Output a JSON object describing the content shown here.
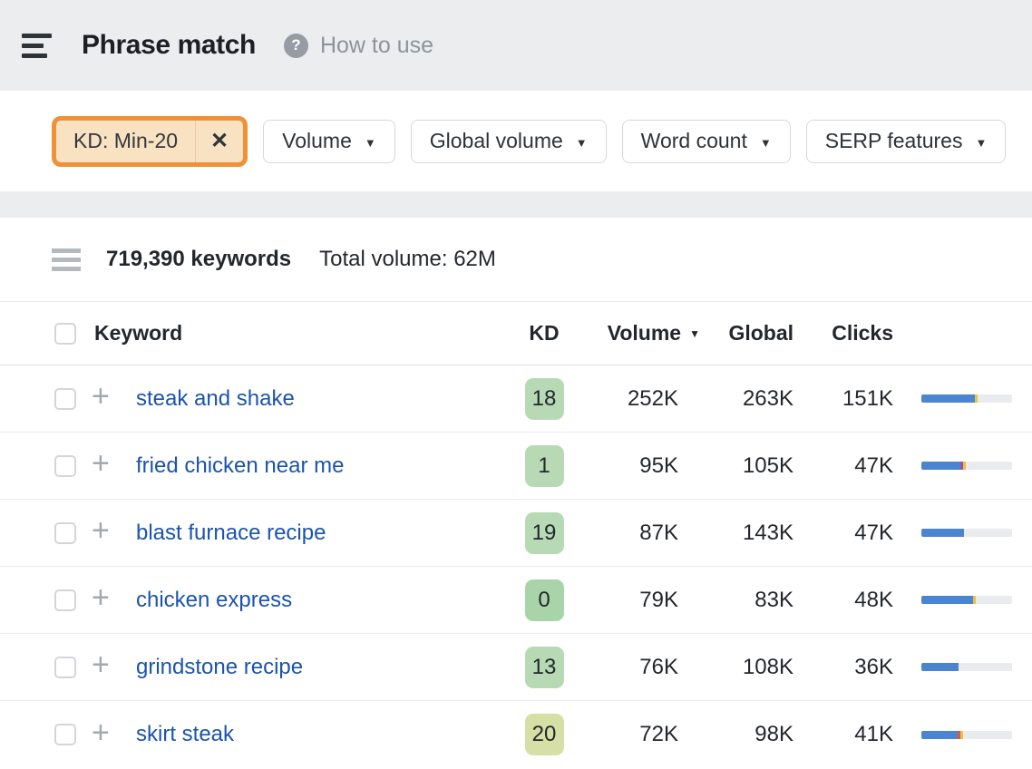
{
  "header": {
    "title": "Phrase match",
    "help_label": "How to use",
    "help_icon": "?"
  },
  "filters": {
    "chip": {
      "label": "KD: Min-20",
      "close_icon": "✕"
    },
    "caret_icon": "▼",
    "buttons": [
      {
        "label": "Volume"
      },
      {
        "label": "Global volume"
      },
      {
        "label": "Word count"
      },
      {
        "label": "SERP features"
      }
    ]
  },
  "stats": {
    "keywords_count": "719,390 keywords",
    "total_volume": "Total volume: 62M"
  },
  "table": {
    "headers": {
      "keyword": "Keyword",
      "kd": "KD",
      "volume": "Volume",
      "global": "Global",
      "clicks": "Clicks",
      "sort_caret": "▼"
    },
    "colors": {
      "bar_blue": "#4b85d1",
      "bar_yellow": "#edc23e",
      "bar_purple": "#9d52a0",
      "bar_red": "#d9584a",
      "bar_track": "#e9ebee",
      "kd_green": "#b7dab4",
      "kd_green_dark": "#a9d4a9",
      "kd_yellow_green": "#d6dfa6",
      "chip_orange": "#ef9138",
      "link_blue": "#1b54ad"
    },
    "rows": [
      {
        "keyword": "steak and shake",
        "kd": "18",
        "kd_color": "#b7dab4",
        "volume": "252K",
        "global": "263K",
        "clicks": "151K",
        "bar": [
          {
            "color": "#4b85d1",
            "pct": 59
          },
          {
            "color": "#edc23e",
            "pct": 3
          }
        ]
      },
      {
        "keyword": "fried chicken near me",
        "kd": "1",
        "kd_color": "#b7dab4",
        "volume": "95K",
        "global": "105K",
        "clicks": "47K",
        "bar": [
          {
            "color": "#4b85d1",
            "pct": 43
          },
          {
            "color": "#9d52a0",
            "pct": 3
          },
          {
            "color": "#edc23e",
            "pct": 3
          }
        ]
      },
      {
        "keyword": "blast furnace recipe",
        "kd": "19",
        "kd_color": "#b7dab4",
        "volume": "87K",
        "global": "143K",
        "clicks": "47K",
        "bar": [
          {
            "color": "#4b85d1",
            "pct": 47
          }
        ]
      },
      {
        "keyword": "chicken express",
        "kd": "0",
        "kd_color": "#a9d4a9",
        "volume": "79K",
        "global": "83K",
        "clicks": "48K",
        "bar": [
          {
            "color": "#4b85d1",
            "pct": 57
          },
          {
            "color": "#edc23e",
            "pct": 3
          }
        ]
      },
      {
        "keyword": "grindstone recipe",
        "kd": "13",
        "kd_color": "#b7dab4",
        "volume": "76K",
        "global": "108K",
        "clicks": "36K",
        "bar": [
          {
            "color": "#4b85d1",
            "pct": 41
          }
        ]
      },
      {
        "keyword": "skirt steak",
        "kd": "20",
        "kd_color": "#d6dfa6",
        "volume": "72K",
        "global": "98K",
        "clicks": "41K",
        "bar": [
          {
            "color": "#4b85d1",
            "pct": 40
          },
          {
            "color": "#d9584a",
            "pct": 3
          },
          {
            "color": "#edc23e",
            "pct": 3
          }
        ]
      }
    ]
  }
}
